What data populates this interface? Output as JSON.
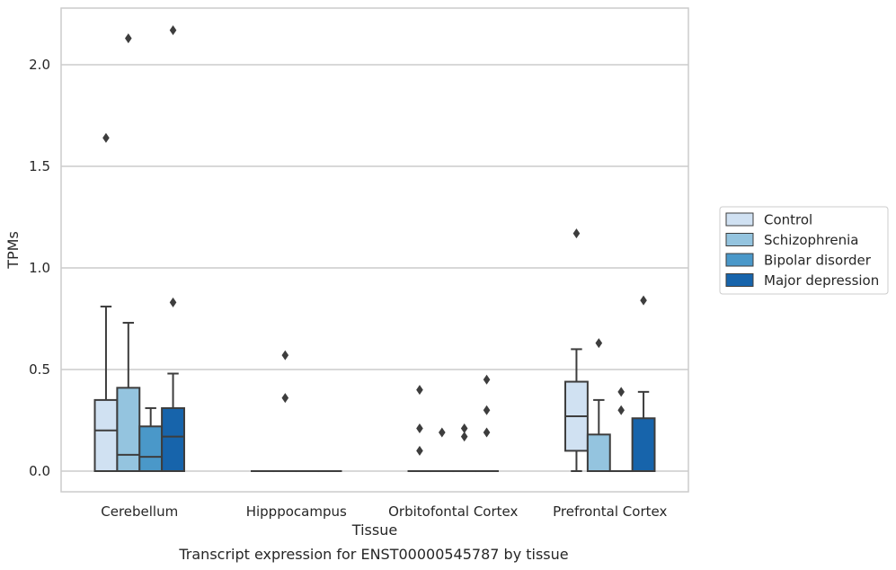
{
  "chart_data": {
    "type": "box",
    "title": "",
    "caption": "Transcript expression for ENST00000545787 by tissue",
    "xlabel": "Tissue",
    "ylabel": "TPMs",
    "ylim": [
      -0.1,
      2.28
    ],
    "yticks": [
      0.0,
      0.5,
      1.0,
      1.5,
      2.0
    ],
    "ytick_labels": [
      "0.0",
      "0.5",
      "1.0",
      "1.5",
      "2.0"
    ],
    "grid": "horizontal",
    "legend_position": "right",
    "categories": [
      "Cerebellum",
      "Hipppocampus",
      "Orbitofontal Cortex",
      "Prefrontal Cortex"
    ],
    "series": [
      {
        "name": "Control",
        "color": "#d0e1f2",
        "boxes": [
          {
            "q1": 0.0,
            "median": 0.2,
            "q3": 0.35,
            "whisker_low": 0.0,
            "whisker_high": 0.81,
            "outliers": [
              1.64
            ]
          },
          {
            "q1": 0.0,
            "median": 0.0,
            "q3": 0.0,
            "whisker_low": 0.0,
            "whisker_high": 0.0,
            "outliers": []
          },
          {
            "q1": 0.0,
            "median": 0.0,
            "q3": 0.0,
            "whisker_low": 0.0,
            "whisker_high": 0.0,
            "outliers": [
              0.4,
              0.21,
              0.1
            ]
          },
          {
            "q1": 0.1,
            "median": 0.27,
            "q3": 0.44,
            "whisker_low": 0.0,
            "whisker_high": 0.6,
            "outliers": [
              1.17
            ]
          }
        ]
      },
      {
        "name": "Schizophrenia",
        "color": "#94c4df",
        "boxes": [
          {
            "q1": 0.0,
            "median": 0.08,
            "q3": 0.41,
            "whisker_low": 0.0,
            "whisker_high": 0.73,
            "outliers": [
              2.13
            ]
          },
          {
            "q1": 0.0,
            "median": 0.0,
            "q3": 0.0,
            "whisker_low": 0.0,
            "whisker_high": 0.0,
            "outliers": [
              0.57,
              0.36
            ]
          },
          {
            "q1": 0.0,
            "median": 0.0,
            "q3": 0.0,
            "whisker_low": 0.0,
            "whisker_high": 0.0,
            "outliers": [
              0.19
            ]
          },
          {
            "q1": 0.0,
            "median": 0.0,
            "q3": 0.18,
            "whisker_low": 0.0,
            "whisker_high": 0.35,
            "outliers": [
              0.63
            ]
          }
        ]
      },
      {
        "name": "Bipolar disorder",
        "color": "#4a98c9",
        "boxes": [
          {
            "q1": 0.0,
            "median": 0.07,
            "q3": 0.22,
            "whisker_low": 0.0,
            "whisker_high": 0.31,
            "outliers": []
          },
          {
            "q1": 0.0,
            "median": 0.0,
            "q3": 0.0,
            "whisker_low": 0.0,
            "whisker_high": 0.0,
            "outliers": []
          },
          {
            "q1": 0.0,
            "median": 0.0,
            "q3": 0.0,
            "whisker_low": 0.0,
            "whisker_high": 0.0,
            "outliers": [
              0.21,
              0.17
            ]
          },
          {
            "q1": 0.0,
            "median": 0.0,
            "q3": 0.0,
            "whisker_low": 0.0,
            "whisker_high": 0.0,
            "outliers": [
              0.39,
              0.3
            ]
          }
        ]
      },
      {
        "name": "Major depression",
        "color": "#1764ab",
        "boxes": [
          {
            "q1": 0.0,
            "median": 0.17,
            "q3": 0.31,
            "whisker_low": 0.0,
            "whisker_high": 0.48,
            "outliers": [
              2.17,
              0.83
            ]
          },
          {
            "q1": 0.0,
            "median": 0.0,
            "q3": 0.0,
            "whisker_low": 0.0,
            "whisker_high": 0.0,
            "outliers": []
          },
          {
            "q1": 0.0,
            "median": 0.0,
            "q3": 0.0,
            "whisker_low": 0.0,
            "whisker_high": 0.0,
            "outliers": [
              0.45,
              0.3,
              0.19
            ]
          },
          {
            "q1": 0.0,
            "median": 0.0,
            "q3": 0.26,
            "whisker_low": 0.0,
            "whisker_high": 0.39,
            "outliers": [
              0.84
            ]
          }
        ]
      }
    ]
  }
}
